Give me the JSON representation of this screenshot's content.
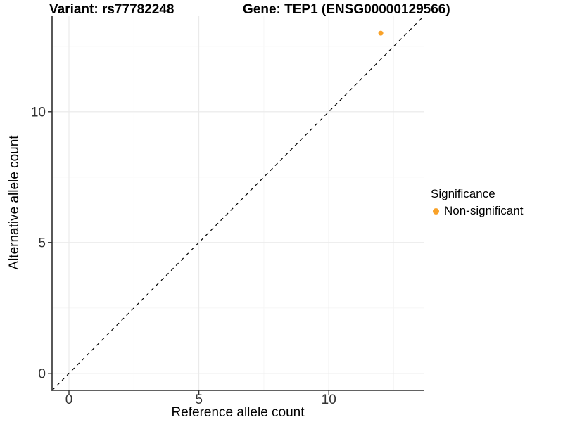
{
  "chart_data": {
    "type": "scatter",
    "title_left": "Variant: rs77782248",
    "title_right": "Gene: TEP1 (ENSG00000129566)",
    "xlabel": "Reference allele count",
    "ylabel": "Alternative allele count",
    "xlim": [
      -0.65,
      13.65
    ],
    "ylim": [
      -0.65,
      13.65
    ],
    "x_ticks": [
      0,
      5,
      10
    ],
    "y_ticks": [
      0,
      5,
      10
    ],
    "x_minor_ticks": [
      2.5,
      7.5,
      12.5
    ],
    "y_minor_ticks": [
      2.5,
      7.5,
      12.5
    ],
    "grid": "on",
    "identity_line": {
      "style": "dashed",
      "color": "#000000",
      "from": -0.65,
      "to": 13.65
    },
    "series": [
      {
        "name": "Non-significant",
        "color": "#F9A229",
        "points": [
          {
            "x": 12,
            "y": 13
          }
        ]
      }
    ],
    "legend": {
      "title": "Significance",
      "position": "right",
      "items": [
        {
          "label": "Non-significant",
          "color": "#F9A229",
          "marker": "dot-icon"
        }
      ]
    }
  }
}
